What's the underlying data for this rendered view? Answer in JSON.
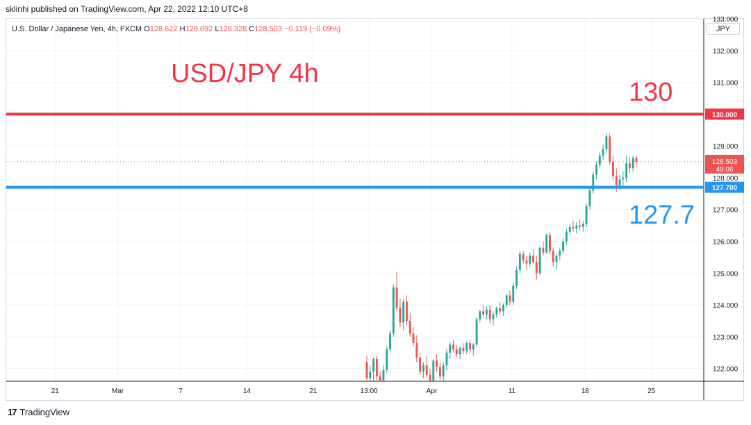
{
  "header": {
    "published": "sklinhi published on TradingView.com, Apr 22, 2022 12:10 UTC+8"
  },
  "legend": {
    "symbol": "U.S. Dollar / Japanese Yen, 4h, FXCM",
    "o_label": "O",
    "o_value": "128.622",
    "h_label": "H",
    "h_value": "128.692",
    "l_label": "L",
    "l_value": "128.328",
    "c_label": "C",
    "c_value": "128.503",
    "change": "−0.119 (−0.09%)"
  },
  "currency_button": "JPY",
  "footer": {
    "brand": "TradingView",
    "logo_glyph": "17"
  },
  "colors": {
    "up": "#26a69a",
    "down": "#ef5350",
    "resistance": "#f23645",
    "support": "#2196f3",
    "grid": "#f0f3fa",
    "axis_text": "#131722"
  },
  "chart_data": {
    "type": "candlestick",
    "title": "USD/JPY 4h",
    "ylim": [
      121.6,
      133.0
    ],
    "y_ticks": [
      "122.000",
      "123.000",
      "124.000",
      "125.000",
      "126.000",
      "127.000",
      "128.000",
      "129.000",
      "130.000",
      "131.000",
      "132.000",
      "133.000"
    ],
    "y_tick_values": [
      122,
      123,
      124,
      125,
      126,
      127,
      128,
      129,
      130,
      131,
      132,
      133
    ],
    "x_ticks": [
      {
        "label": "21",
        "pos": 0.07
      },
      {
        "label": "Mar",
        "pos": 0.16
      },
      {
        "label": "7",
        "pos": 0.25
      },
      {
        "label": "14",
        "pos": 0.345
      },
      {
        "label": "21",
        "pos": 0.44
      },
      {
        "label": "13:00",
        "pos": 0.52
      },
      {
        "label": "Apr",
        "pos": 0.61
      },
      {
        "label": "11",
        "pos": 0.725
      },
      {
        "label": "18",
        "pos": 0.83
      },
      {
        "label": "25",
        "pos": 0.925
      }
    ],
    "levels": [
      {
        "value": 130.0,
        "label": "130",
        "tag": "130.000",
        "color": "#f23645"
      },
      {
        "value": 127.7,
        "label": "127.7",
        "tag": "127.700",
        "color": "#2196f3"
      }
    ],
    "last_price": {
      "value": 128.503,
      "tag": "128.503",
      "countdown": "49:06"
    },
    "candles": [
      [
        122.2,
        122.4,
        121.55,
        121.7
      ],
      [
        121.7,
        122.1,
        121.5,
        121.9
      ],
      [
        121.9,
        122.35,
        121.6,
        122.3
      ],
      [
        122.3,
        122.4,
        121.6,
        121.75
      ],
      [
        121.75,
        121.9,
        121.55,
        121.6
      ],
      [
        121.6,
        122.1,
        121.55,
        121.95
      ],
      [
        121.95,
        122.7,
        121.85,
        122.6
      ],
      [
        122.6,
        123.2,
        122.5,
        123.1
      ],
      [
        123.1,
        124.65,
        123.0,
        124.55
      ],
      [
        124.55,
        125.05,
        123.8,
        123.9
      ],
      [
        123.9,
        124.2,
        123.3,
        123.45
      ],
      [
        123.45,
        124.2,
        123.2,
        124.1
      ],
      [
        124.1,
        124.3,
        123.35,
        123.5
      ],
      [
        123.5,
        123.75,
        123.0,
        123.1
      ],
      [
        123.1,
        123.3,
        122.7,
        122.8
      ],
      [
        122.8,
        123.05,
        122.2,
        122.35
      ],
      [
        122.35,
        122.5,
        121.8,
        121.9
      ],
      [
        121.9,
        122.2,
        121.7,
        122.1
      ],
      [
        122.1,
        122.4,
        121.7,
        121.8
      ],
      [
        121.8,
        122.0,
        121.4,
        121.55
      ],
      [
        121.55,
        122.3,
        121.5,
        122.25
      ],
      [
        122.25,
        122.45,
        121.9,
        122.05
      ],
      [
        122.05,
        122.2,
        121.65,
        121.75
      ],
      [
        121.75,
        122.2,
        121.6,
        122.1
      ],
      [
        122.1,
        122.6,
        121.95,
        122.5
      ],
      [
        122.5,
        122.85,
        122.3,
        122.75
      ],
      [
        122.75,
        122.9,
        122.5,
        122.6
      ],
      [
        122.6,
        122.75,
        122.35,
        122.45
      ],
      [
        122.45,
        122.7,
        122.3,
        122.65
      ],
      [
        122.65,
        122.8,
        122.45,
        122.55
      ],
      [
        122.55,
        122.85,
        122.45,
        122.8
      ],
      [
        122.8,
        122.9,
        122.5,
        122.6
      ],
      [
        122.6,
        122.8,
        122.4,
        122.75
      ],
      [
        122.75,
        123.6,
        122.7,
        123.55
      ],
      [
        123.55,
        123.85,
        123.45,
        123.8
      ],
      [
        123.8,
        124.0,
        123.6,
        123.7
      ],
      [
        123.7,
        123.95,
        123.55,
        123.85
      ],
      [
        123.85,
        124.0,
        123.4,
        123.55
      ],
      [
        123.55,
        123.8,
        123.35,
        123.7
      ],
      [
        123.7,
        123.95,
        123.6,
        123.9
      ],
      [
        123.9,
        124.1,
        123.7,
        123.8
      ],
      [
        123.8,
        124.05,
        123.65,
        124.0
      ],
      [
        124.0,
        124.35,
        123.9,
        124.3
      ],
      [
        124.3,
        124.45,
        124.0,
        124.1
      ],
      [
        124.1,
        124.7,
        124.0,
        124.6
      ],
      [
        124.6,
        125.2,
        124.5,
        125.1
      ],
      [
        125.1,
        125.7,
        125.0,
        125.6
      ],
      [
        125.6,
        125.7,
        125.3,
        125.4
      ],
      [
        125.4,
        125.55,
        125.1,
        125.3
      ],
      [
        125.3,
        125.65,
        125.2,
        125.55
      ],
      [
        125.55,
        125.75,
        125.3,
        125.35
      ],
      [
        125.35,
        125.55,
        124.8,
        125.0
      ],
      [
        125.0,
        125.85,
        124.95,
        125.8
      ],
      [
        125.8,
        126.0,
        125.55,
        125.65
      ],
      [
        125.65,
        126.25,
        125.6,
        126.2
      ],
      [
        126.2,
        126.3,
        125.6,
        125.7
      ],
      [
        125.7,
        125.8,
        125.2,
        125.35
      ],
      [
        125.35,
        125.6,
        125.1,
        125.55
      ],
      [
        125.55,
        125.8,
        125.4,
        125.7
      ],
      [
        125.7,
        126.1,
        125.6,
        126.0
      ],
      [
        126.0,
        126.4,
        125.9,
        126.3
      ],
      [
        126.3,
        126.55,
        126.2,
        126.45
      ],
      [
        126.45,
        126.65,
        126.3,
        126.4
      ],
      [
        126.4,
        126.6,
        126.25,
        126.5
      ],
      [
        126.5,
        126.7,
        126.35,
        126.45
      ],
      [
        126.45,
        126.65,
        126.3,
        126.55
      ],
      [
        126.55,
        127.2,
        126.45,
        127.1
      ],
      [
        127.1,
        127.7,
        127.0,
        127.6
      ],
      [
        127.6,
        128.2,
        127.5,
        128.1
      ],
      [
        128.1,
        128.5,
        127.95,
        128.4
      ],
      [
        128.4,
        128.8,
        128.3,
        128.7
      ],
      [
        128.7,
        129.05,
        128.55,
        128.9
      ],
      [
        128.9,
        129.4,
        128.75,
        129.3
      ],
      [
        129.3,
        129.4,
        128.4,
        128.5
      ],
      [
        128.5,
        128.7,
        127.9,
        128.05
      ],
      [
        128.05,
        128.3,
        127.55,
        127.75
      ],
      [
        127.75,
        128.1,
        127.6,
        127.95
      ],
      [
        127.95,
        128.2,
        127.7,
        128.0
      ],
      [
        128.0,
        128.7,
        127.85,
        128.45
      ],
      [
        128.45,
        128.65,
        128.15,
        128.3
      ],
      [
        128.3,
        128.7,
        128.2,
        128.62
      ],
      [
        128.62,
        128.69,
        128.33,
        128.5
      ]
    ]
  }
}
